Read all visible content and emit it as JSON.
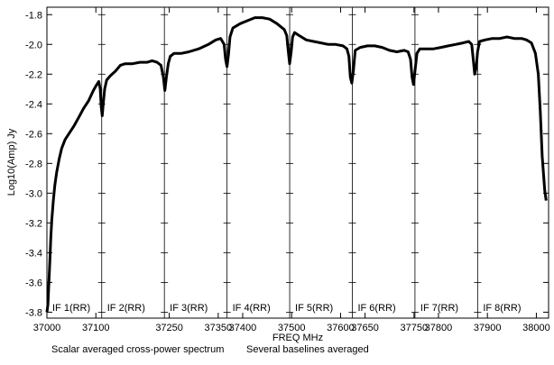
{
  "chart_data": {
    "type": "line",
    "title": "",
    "xlabel": "FREQ MHz",
    "ylabel": "Log10(Amp) Jy",
    "xlim": [
      37000,
      38025
    ],
    "ylim": [
      -3.84,
      -1.75
    ],
    "grid": false,
    "x_ticks": [
      {
        "value": 37000,
        "label": "37000"
      },
      {
        "value": 37100,
        "label": "37100"
      },
      {
        "value": 37250,
        "label": "37250"
      },
      {
        "value": 37350,
        "label": "37350"
      },
      {
        "value": 37400,
        "label": "37400"
      },
      {
        "value": 37500,
        "label": "37500"
      },
      {
        "value": 37600,
        "label": "37600"
      },
      {
        "value": 37650,
        "label": "37650"
      },
      {
        "value": 37750,
        "label": "37750"
      },
      {
        "value": 37800,
        "label": "37800"
      },
      {
        "value": 37900,
        "label": "37900"
      },
      {
        "value": 38000,
        "label": "38000"
      }
    ],
    "y_ticks": [
      {
        "value": -1.8,
        "label": "-1.8"
      },
      {
        "value": -2.0,
        "label": "-2.0"
      },
      {
        "value": -2.2,
        "label": "-2.2"
      },
      {
        "value": -2.4,
        "label": "-2.4"
      },
      {
        "value": -2.6,
        "label": "-2.6"
      },
      {
        "value": -2.8,
        "label": "-2.8"
      },
      {
        "value": -3.0,
        "label": "-3.0"
      },
      {
        "value": -3.2,
        "label": "-3.2"
      },
      {
        "value": -3.4,
        "label": "-3.4"
      },
      {
        "value": -3.6,
        "label": "-3.6"
      },
      {
        "value": -3.8,
        "label": "-3.8"
      }
    ],
    "if_boundaries": [
      37112,
      37240,
      37368,
      37496,
      37624,
      37752,
      37880
    ],
    "if_panels": [
      {
        "label": "IF 1(RR)",
        "x_start": 37000
      },
      {
        "label": "IF 2(RR)",
        "x_start": 37112
      },
      {
        "label": "IF 3(RR)",
        "x_start": 37240
      },
      {
        "label": "IF 4(RR)",
        "x_start": 37368
      },
      {
        "label": "IF 5(RR)",
        "x_start": 37496
      },
      {
        "label": "IF 6(RR)",
        "x_start": 37624
      },
      {
        "label": "IF 7(RR)",
        "x_start": 37752
      },
      {
        "label": "IF 8(RR)",
        "x_start": 37880
      }
    ],
    "series": [
      {
        "points": [
          [
            37000,
            -3.8
          ],
          [
            37002,
            -3.75
          ],
          [
            37004,
            -3.6
          ],
          [
            37006,
            -3.45
          ],
          [
            37008,
            -3.3
          ],
          [
            37010,
            -3.18
          ],
          [
            37013,
            -3.05
          ],
          [
            37016,
            -2.95
          ],
          [
            37020,
            -2.86
          ],
          [
            37025,
            -2.77
          ],
          [
            37030,
            -2.7
          ],
          [
            37037,
            -2.64
          ],
          [
            37045,
            -2.6
          ],
          [
            37055,
            -2.55
          ],
          [
            37065,
            -2.49
          ],
          [
            37075,
            -2.43
          ],
          [
            37085,
            -2.38
          ],
          [
            37095,
            -2.31
          ],
          [
            37102,
            -2.27
          ],
          [
            37106,
            -2.25
          ],
          [
            37109,
            -2.3
          ],
          [
            37111,
            -2.42
          ],
          [
            37113,
            -2.48
          ],
          [
            37115,
            -2.4
          ],
          [
            37118,
            -2.3
          ],
          [
            37122,
            -2.24
          ],
          [
            37130,
            -2.21
          ],
          [
            37140,
            -2.18
          ],
          [
            37150,
            -2.14
          ],
          [
            37160,
            -2.13
          ],
          [
            37175,
            -2.13
          ],
          [
            37190,
            -2.12
          ],
          [
            37205,
            -2.12
          ],
          [
            37215,
            -2.11
          ],
          [
            37225,
            -2.12
          ],
          [
            37233,
            -2.14
          ],
          [
            37238,
            -2.22
          ],
          [
            37241,
            -2.31
          ],
          [
            37244,
            -2.22
          ],
          [
            37248,
            -2.13
          ],
          [
            37252,
            -2.08
          ],
          [
            37260,
            -2.06
          ],
          [
            37275,
            -2.06
          ],
          [
            37290,
            -2.05
          ],
          [
            37310,
            -2.03
          ],
          [
            37330,
            -2.0
          ],
          [
            37345,
            -1.97
          ],
          [
            37355,
            -1.96
          ],
          [
            37362,
            -2.0
          ],
          [
            37365,
            -2.1
          ],
          [
            37368,
            -2.15
          ],
          [
            37371,
            -2.07
          ],
          [
            37374,
            -1.95
          ],
          [
            37380,
            -1.89
          ],
          [
            37395,
            -1.86
          ],
          [
            37410,
            -1.84
          ],
          [
            37425,
            -1.82
          ],
          [
            37440,
            -1.82
          ],
          [
            37455,
            -1.83
          ],
          [
            37470,
            -1.86
          ],
          [
            37485,
            -1.9
          ],
          [
            37490,
            -1.94
          ],
          [
            37493,
            -2.04
          ],
          [
            37496,
            -2.13
          ],
          [
            37499,
            -2.05
          ],
          [
            37502,
            -1.95
          ],
          [
            37506,
            -1.92
          ],
          [
            37515,
            -1.94
          ],
          [
            37530,
            -1.97
          ],
          [
            37545,
            -1.98
          ],
          [
            37560,
            -1.99
          ],
          [
            37575,
            -2.0
          ],
          [
            37590,
            -2.0
          ],
          [
            37605,
            -2.01
          ],
          [
            37613,
            -2.03
          ],
          [
            37617,
            -2.08
          ],
          [
            37620,
            -2.22
          ],
          [
            37623,
            -2.26
          ],
          [
            37626,
            -2.18
          ],
          [
            37630,
            -2.04
          ],
          [
            37640,
            -2.02
          ],
          [
            37655,
            -2.01
          ],
          [
            37670,
            -2.01
          ],
          [
            37685,
            -2.02
          ],
          [
            37700,
            -2.04
          ],
          [
            37715,
            -2.05
          ],
          [
            37730,
            -2.04
          ],
          [
            37738,
            -2.05
          ],
          [
            37743,
            -2.1
          ],
          [
            37746,
            -2.22
          ],
          [
            37749,
            -2.27
          ],
          [
            37752,
            -2.18
          ],
          [
            37756,
            -2.06
          ],
          [
            37762,
            -2.03
          ],
          [
            37775,
            -2.03
          ],
          [
            37790,
            -2.03
          ],
          [
            37805,
            -2.02
          ],
          [
            37820,
            -2.01
          ],
          [
            37835,
            -2.0
          ],
          [
            37850,
            -1.99
          ],
          [
            37862,
            -1.98
          ],
          [
            37868,
            -2.0
          ],
          [
            37871,
            -2.1
          ],
          [
            37874,
            -2.2
          ],
          [
            37877,
            -2.16
          ],
          [
            37880,
            -2.05
          ],
          [
            37884,
            -1.98
          ],
          [
            37895,
            -1.97
          ],
          [
            37910,
            -1.96
          ],
          [
            37925,
            -1.96
          ],
          [
            37940,
            -1.95
          ],
          [
            37955,
            -1.96
          ],
          [
            37970,
            -1.96
          ],
          [
            37980,
            -1.97
          ],
          [
            37990,
            -1.99
          ],
          [
            37998,
            -2.06
          ],
          [
            38004,
            -2.2
          ],
          [
            38008,
            -2.45
          ],
          [
            38012,
            -2.75
          ],
          [
            38017,
            -2.98
          ],
          [
            38020,
            -3.05
          ]
        ]
      }
    ],
    "footer_left": "Scalar averaged cross-power spectrum",
    "footer_right": "Several baselines averaged"
  }
}
